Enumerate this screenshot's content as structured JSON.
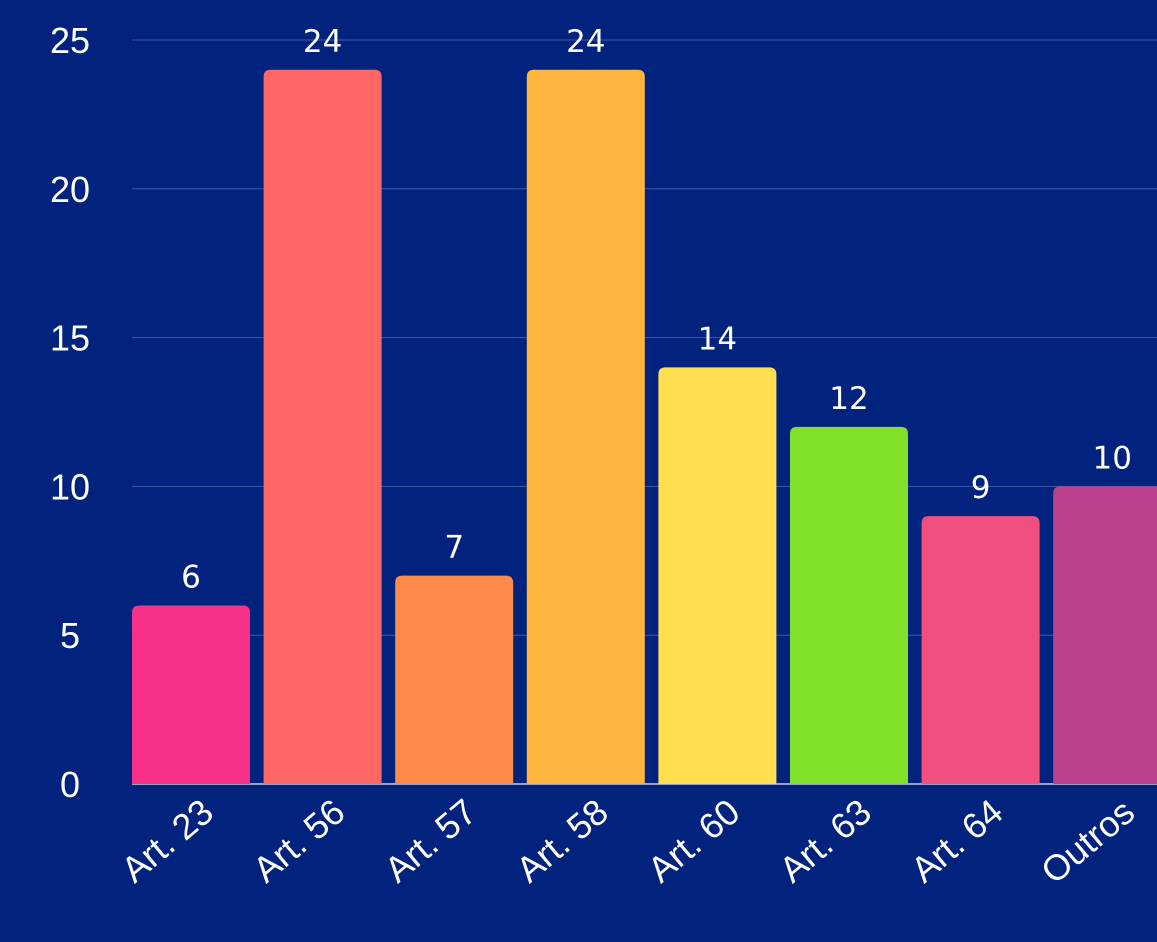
{
  "chart_data": {
    "type": "bar",
    "categories": [
      "Art. 23",
      "Art. 56",
      "Art. 57",
      "Art. 58",
      "Art. 60",
      "Art. 63",
      "Art. 64",
      "Outros"
    ],
    "values": [
      6,
      24,
      7,
      24,
      14,
      12,
      9,
      10
    ],
    "colors": [
      "#f73189",
      "#ff6767",
      "#ff8b4a",
      "#ffb53e",
      "#ffdf4f",
      "#80e02a",
      "#f05080",
      "#bb418f"
    ],
    "title": "",
    "xlabel": "",
    "ylabel": "",
    "ylim": [
      0,
      25
    ],
    "yticks": [
      0,
      5,
      10,
      15,
      20,
      25
    ],
    "grid": true,
    "legend": "none",
    "background": "#01227d"
  }
}
